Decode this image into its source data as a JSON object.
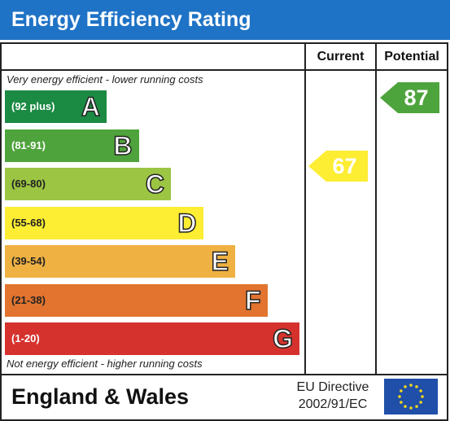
{
  "header": {
    "title": "Energy Efficiency Rating"
  },
  "columns": {
    "current": "Current",
    "potential": "Potential"
  },
  "notes": {
    "top": "Very energy efficient - lower running costs",
    "bottom": "Not energy efficient - higher running costs"
  },
  "bands": [
    {
      "letter": "A",
      "range": "(92 plus)",
      "color": "#1b8a43",
      "text_color": "#ffffff"
    },
    {
      "letter": "B",
      "range": "(81-91)",
      "color": "#4fa33c",
      "text_color": "#ffffff"
    },
    {
      "letter": "C",
      "range": "(69-80)",
      "color": "#9bc543",
      "text_color": "#222222"
    },
    {
      "letter": "D",
      "range": "(55-68)",
      "color": "#fded33",
      "text_color": "#222222"
    },
    {
      "letter": "E",
      "range": "(39-54)",
      "color": "#eeb142",
      "text_color": "#222222"
    },
    {
      "letter": "F",
      "range": "(21-38)",
      "color": "#e2742f",
      "text_color": "#222222"
    },
    {
      "letter": "G",
      "range": "(1-20)",
      "color": "#d5322e",
      "text_color": "#ffffff"
    }
  ],
  "ratings": {
    "current": {
      "value": "67",
      "band": "D",
      "color": "#fded33"
    },
    "potential": {
      "value": "87",
      "band": "B",
      "color": "#4ea43c"
    }
  },
  "footer": {
    "region": "England & Wales",
    "directive_line1": "EU Directive",
    "directive_line2": "2002/91/EC",
    "flag_icon": "eu-flag-icon"
  }
}
